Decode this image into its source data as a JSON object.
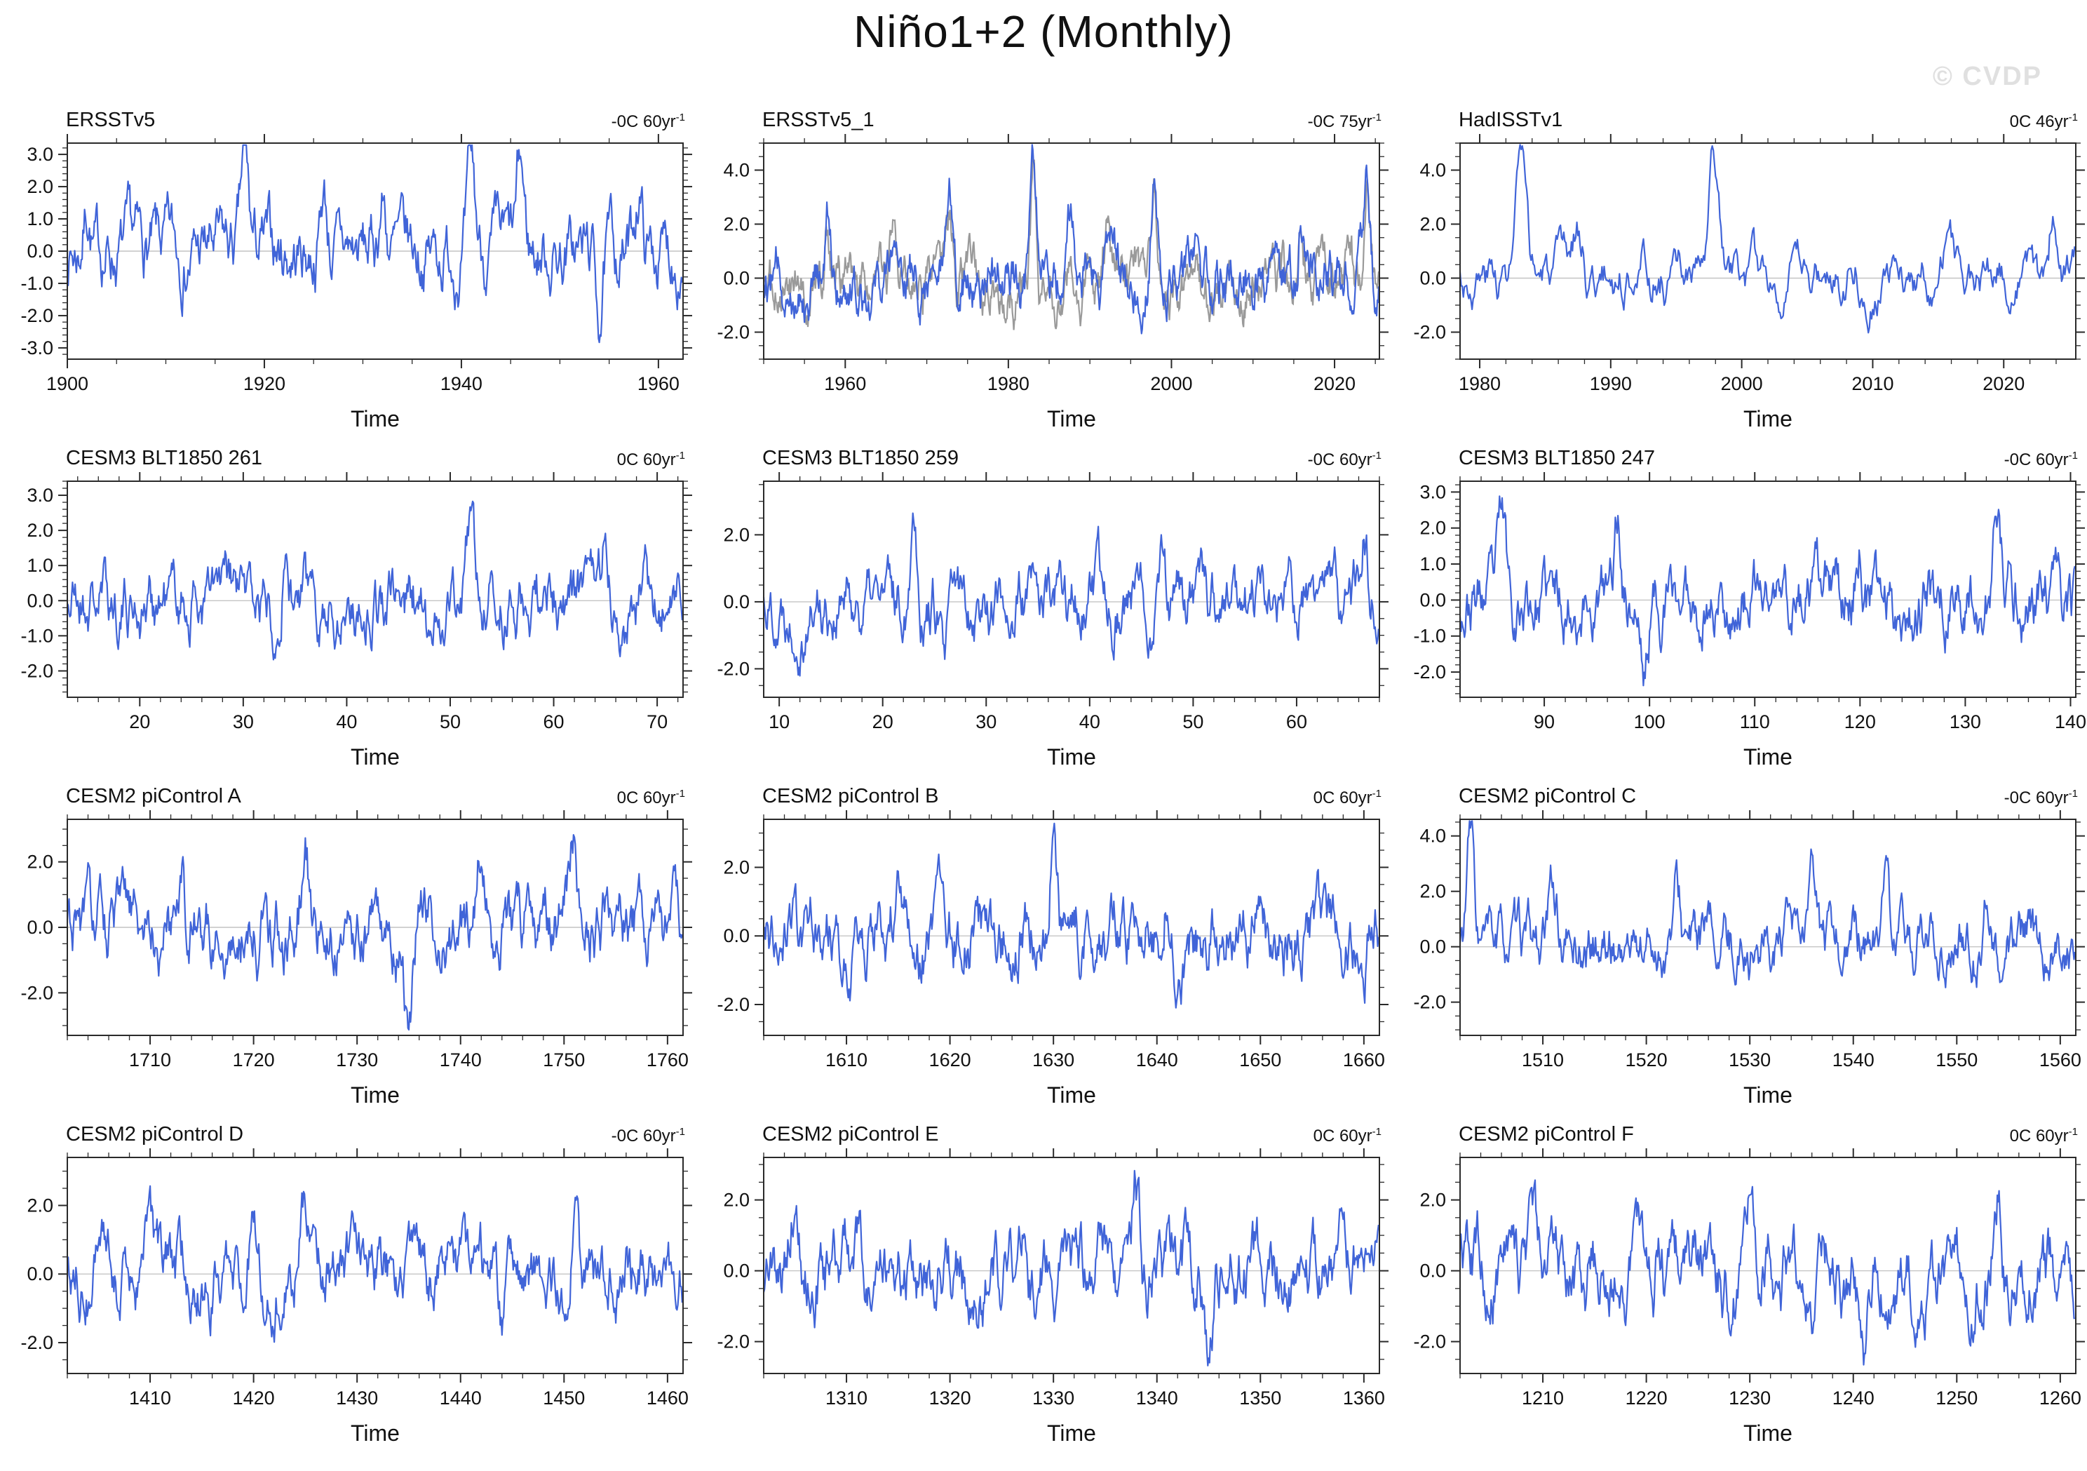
{
  "title": "Niño1+2 (Monthly)",
  "watermark": "© CVDP",
  "xlabel": "Time",
  "colors": {
    "line": "#4064d8",
    "secondary_line": "#9a9a9a",
    "zero_line": "#c4c4c4",
    "axis": "#2a2a2a",
    "watermark": "#e0e0e0"
  },
  "chart_data": [
    {
      "type": "line",
      "title": "ERSSTv5",
      "annotation": "-0C 60yr",
      "annotation_sup": "-1",
      "xlabel": "Time",
      "x_range": [
        1900,
        1962.5
      ],
      "x_ticks": [
        "1900",
        "1920",
        "1940",
        "1960"
      ],
      "x_minor_step": 5,
      "y_range": [
        -3.35,
        3.35
      ],
      "y_ticks": [
        "3.0",
        "2.0",
        "1.0",
        "0.0",
        "-1.0",
        "-2.0",
        "-3.0"
      ],
      "y_minor_step": 0.2,
      "seed": 7,
      "sigma": 1.0,
      "peaks": [
        {
          "x": 1902,
          "h": 1.5
        },
        {
          "x": 1918,
          "h": 2.7
        },
        {
          "x": 1926,
          "h": 1.9
        },
        {
          "x": 1932,
          "h": 1.7
        },
        {
          "x": 1941,
          "h": 2.2
        },
        {
          "x": 1946,
          "h": 2.4
        },
        {
          "x": 1954,
          "h": -1.8
        },
        {
          "x": 1958,
          "h": 2.0
        }
      ]
    },
    {
      "type": "line",
      "title": "ERSSTv5_1",
      "annotation": "-0C 75yr",
      "annotation_sup": "-1",
      "xlabel": "Time",
      "x_range": [
        1950,
        2025.5
      ],
      "x_ticks": [
        "1960",
        "1980",
        "2000",
        "2020"
      ],
      "x_minor_step": 5,
      "y_range": [
        -3.0,
        5.0
      ],
      "y_ticks": [
        "4.0",
        "2.0",
        "0.0",
        "-2.0"
      ],
      "y_minor_step": 0.5,
      "seed": 12,
      "sigma": 0.95,
      "secondary": {
        "seed": 112,
        "offset": -0.3
      },
      "peaks": [
        {
          "x": 1957.9,
          "h": 1.9
        },
        {
          "x": 1965.8,
          "h": 1.6
        },
        {
          "x": 1972.9,
          "h": 2.3
        },
        {
          "x": 1983.1,
          "h": 4.1
        },
        {
          "x": 1987.6,
          "h": 1.9
        },
        {
          "x": 1992,
          "h": 1.6
        },
        {
          "x": 1997.9,
          "h": 4.0
        },
        {
          "x": 2002.8,
          "h": 1.5
        },
        {
          "x": 2015.9,
          "h": 2.2
        },
        {
          "x": 2023.9,
          "h": 4.1
        }
      ]
    },
    {
      "type": "line",
      "title": "HadISSTv1",
      "annotation": "0C 46yr",
      "annotation_sup": "-1",
      "xlabel": "Time",
      "x_range": [
        1978.5,
        2025.5
      ],
      "x_ticks": [
        "1980",
        "1990",
        "2000",
        "2010",
        "2020"
      ],
      "x_minor_step": 2,
      "y_range": [
        -3.0,
        5.0
      ],
      "y_ticks": [
        "4.0",
        "2.0",
        "0.0",
        "-2.0"
      ],
      "y_minor_step": 0.5,
      "seed": 3,
      "sigma": 0.85,
      "peaks": [
        {
          "x": 1983.1,
          "h": 4.2
        },
        {
          "x": 1987.5,
          "h": 1.8
        },
        {
          "x": 1992.2,
          "h": 1.5
        },
        {
          "x": 1997.9,
          "h": 4.2
        },
        {
          "x": 2008.5,
          "h": 1.3
        },
        {
          "x": 2015.8,
          "h": 2.0
        },
        {
          "x": 2023.8,
          "h": 2.3
        }
      ]
    },
    {
      "type": "line",
      "title": "CESM3 BLT1850 261",
      "annotation": "0C 60yr",
      "annotation_sup": "-1",
      "xlabel": "Time",
      "x_range": [
        13,
        72.5
      ],
      "x_ticks": [
        "20",
        "30",
        "40",
        "50",
        "60",
        "70"
      ],
      "x_minor_step": 2,
      "y_range": [
        -2.75,
        3.4
      ],
      "y_ticks": [
        "3.0",
        "2.0",
        "1.0",
        "0.0",
        "-1.0",
        "-2.0"
      ],
      "y_minor_step": 0.2,
      "seed": 21,
      "sigma": 0.95,
      "peaks": [
        {
          "x": 52,
          "h": 2.1
        },
        {
          "x": 65,
          "h": 1.9
        },
        {
          "x": 48,
          "h": -1.9
        },
        {
          "x": 34,
          "h": 1.6
        }
      ]
    },
    {
      "type": "line",
      "title": "CESM3 BLT1850 259",
      "annotation": "-0C 60yr",
      "annotation_sup": "-1",
      "xlabel": "Time",
      "x_range": [
        8.5,
        68
      ],
      "x_ticks": [
        "10",
        "20",
        "30",
        "40",
        "50",
        "60"
      ],
      "x_minor_step": 2,
      "y_range": [
        -2.85,
        3.6
      ],
      "y_ticks": [
        "2.0",
        "0.0",
        "-2.0"
      ],
      "y_minor_step": 0.5,
      "seed": 22,
      "sigma": 0.95,
      "peaks": [
        {
          "x": 23,
          "h": 3.2
        },
        {
          "x": 47,
          "h": 2.0
        },
        {
          "x": 66.5,
          "h": 2.3
        },
        {
          "x": 26,
          "h": -2.1
        }
      ]
    },
    {
      "type": "line",
      "title": "CESM3 BLT1850 247",
      "annotation": "-0C 60yr",
      "annotation_sup": "-1",
      "xlabel": "Time",
      "x_range": [
        82,
        140.5
      ],
      "x_ticks": [
        "90",
        "100",
        "110",
        "120",
        "130",
        "140"
      ],
      "x_minor_step": 2,
      "y_range": [
        -2.7,
        3.3
      ],
      "y_ticks": [
        "3.0",
        "2.0",
        "1.0",
        "0.0",
        "-1.0",
        "-2.0"
      ],
      "y_minor_step": 0.2,
      "seed": 23,
      "sigma": 0.9,
      "peaks": [
        {
          "x": 86,
          "h": 2.0
        },
        {
          "x": 97,
          "h": 2.1
        },
        {
          "x": 99.5,
          "h": -2.0
        },
        {
          "x": 133,
          "h": 2.0
        },
        {
          "x": 120,
          "h": 1.6
        }
      ]
    },
    {
      "type": "line",
      "title": "CESM2 piControl A",
      "annotation": "0C 60yr",
      "annotation_sup": "-1",
      "xlabel": "Time",
      "x_range": [
        1702,
        1761.5
      ],
      "x_ticks": [
        "1710",
        "1720",
        "1730",
        "1740",
        "1750",
        "1760"
      ],
      "x_minor_step": 2,
      "y_range": [
        -3.3,
        3.3
      ],
      "y_ticks": [
        "2.0",
        "0.0",
        "-2.0"
      ],
      "y_minor_step": 0.5,
      "seed": 31,
      "sigma": 1.05,
      "peaks": [
        {
          "x": 1713,
          "h": 2.3
        },
        {
          "x": 1725,
          "h": 2.4
        },
        {
          "x": 1735,
          "h": -2.6
        },
        {
          "x": 1742,
          "h": 2.3
        },
        {
          "x": 1751,
          "h": 2.7
        }
      ]
    },
    {
      "type": "line",
      "title": "CESM2 piControl B",
      "annotation": "0C 60yr",
      "annotation_sup": "-1",
      "xlabel": "Time",
      "x_range": [
        1602,
        1661.5
      ],
      "x_ticks": [
        "1610",
        "1620",
        "1630",
        "1640",
        "1650",
        "1660"
      ],
      "x_minor_step": 2,
      "y_range": [
        -2.9,
        3.4
      ],
      "y_ticks": [
        "2.0",
        "0.0",
        "-2.0"
      ],
      "y_minor_step": 0.5,
      "seed": 32,
      "sigma": 1.0,
      "peaks": [
        {
          "x": 1615,
          "h": 2.6
        },
        {
          "x": 1630,
          "h": 3.1
        },
        {
          "x": 1641,
          "h": 2.2
        },
        {
          "x": 1650,
          "h": 1.7
        }
      ]
    },
    {
      "type": "line",
      "title": "CESM2 piControl C",
      "annotation": "-0C 60yr",
      "annotation_sup": "-1",
      "xlabel": "Time",
      "x_range": [
        1502,
        1561.5
      ],
      "x_ticks": [
        "1510",
        "1520",
        "1530",
        "1540",
        "1550",
        "1560"
      ],
      "x_minor_step": 2,
      "y_range": [
        -3.2,
        4.6
      ],
      "y_ticks": [
        "4.0",
        "2.0",
        "0.0",
        "-2.0"
      ],
      "y_minor_step": 0.5,
      "seed": 33,
      "sigma": 1.0,
      "peaks": [
        {
          "x": 1503,
          "h": 3.9
        },
        {
          "x": 1511,
          "h": 2.1
        },
        {
          "x": 1523,
          "h": 1.8
        },
        {
          "x": 1536,
          "h": 2.0
        },
        {
          "x": 1543,
          "h": 2.4
        },
        {
          "x": 1553,
          "h": 2.0
        }
      ]
    },
    {
      "type": "line",
      "title": "CESM2 piControl D",
      "annotation": "-0C 60yr",
      "annotation_sup": "-1",
      "xlabel": "Time",
      "x_range": [
        1402,
        1461.5
      ],
      "x_ticks": [
        "1410",
        "1420",
        "1430",
        "1440",
        "1450",
        "1460"
      ],
      "x_minor_step": 2,
      "y_range": [
        -2.9,
        3.4
      ],
      "y_ticks": [
        "2.0",
        "0.0",
        "-2.0"
      ],
      "y_minor_step": 0.5,
      "seed": 34,
      "sigma": 0.95,
      "peaks": [
        {
          "x": 1410,
          "h": 1.4
        },
        {
          "x": 1420,
          "h": 2.3
        },
        {
          "x": 1425,
          "h": 2.2
        },
        {
          "x": 1451,
          "h": 3.0
        },
        {
          "x": 1444,
          "h": -2.0
        }
      ]
    },
    {
      "type": "line",
      "title": "CESM2 piControl E",
      "annotation": "0C 60yr",
      "annotation_sup": "-1",
      "xlabel": "Time",
      "x_range": [
        1302,
        1361.5
      ],
      "x_ticks": [
        "1310",
        "1320",
        "1330",
        "1340",
        "1350",
        "1360"
      ],
      "x_minor_step": 2,
      "y_range": [
        -2.9,
        3.2
      ],
      "y_ticks": [
        "2.0",
        "0.0",
        "-2.0"
      ],
      "y_minor_step": 0.5,
      "seed": 35,
      "sigma": 1.0,
      "peaks": [
        {
          "x": 1305,
          "h": 2.2
        },
        {
          "x": 1338,
          "h": 2.4
        },
        {
          "x": 1345,
          "h": -2.2
        },
        {
          "x": 1327,
          "h": 1.8
        }
      ]
    },
    {
      "type": "line",
      "title": "CESM2 piControl F",
      "annotation": "0C 60yr",
      "annotation_sup": "-1",
      "xlabel": "Time",
      "x_range": [
        1202,
        1261.5
      ],
      "x_ticks": [
        "1210",
        "1220",
        "1230",
        "1240",
        "1250",
        "1260"
      ],
      "x_minor_step": 2,
      "y_range": [
        -2.9,
        3.2
      ],
      "y_ticks": [
        "2.0",
        "0.0",
        "-2.0"
      ],
      "y_minor_step": 0.5,
      "seed": 36,
      "sigma": 1.0,
      "peaks": [
        {
          "x": 1209,
          "h": 2.2
        },
        {
          "x": 1230,
          "h": 2.4
        },
        {
          "x": 1241,
          "h": -2.0
        },
        {
          "x": 1254,
          "h": 2.3
        }
      ]
    }
  ]
}
